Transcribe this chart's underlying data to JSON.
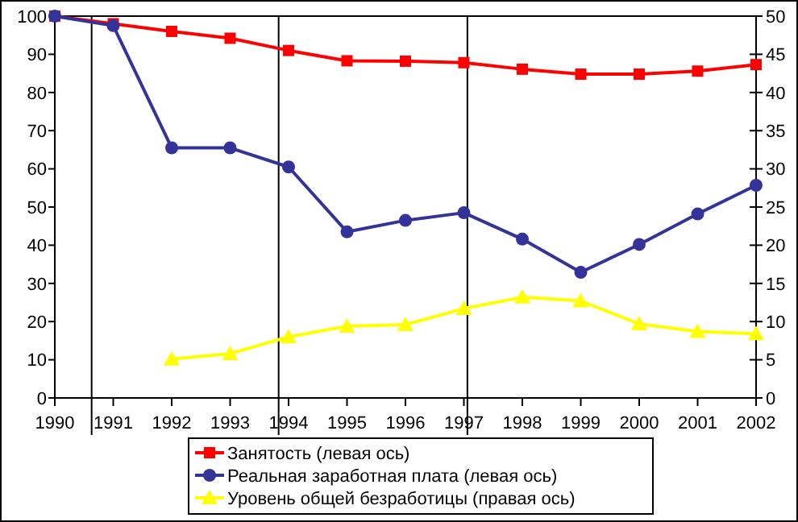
{
  "chart_data": {
    "type": "line",
    "x": [
      1990,
      1991,
      1992,
      1993,
      1994,
      1995,
      1996,
      1997,
      1998,
      1999,
      2000,
      2001,
      2002
    ],
    "xlim": [
      1990,
      2002
    ],
    "xticks": [
      1990,
      1991,
      1992,
      1993,
      1994,
      1995,
      1996,
      1997,
      1998,
      1999,
      2000,
      2001,
      2002
    ],
    "ylim": [
      0,
      100
    ],
    "yticks": [
      0,
      10,
      20,
      30,
      40,
      50,
      60,
      70,
      80,
      90,
      100
    ],
    "y2lim": [
      0,
      50
    ],
    "y2ticks": [
      0,
      5,
      10,
      15,
      20,
      25,
      30,
      35,
      40,
      45,
      50
    ],
    "series": [
      {
        "name": "Занятость (левая ось)",
        "color": "#ff0000",
        "marker": "square",
        "values": [
          100,
          98,
          96,
          94.2,
          91,
          88.3,
          88.2,
          87.8,
          86.1,
          84.8,
          84.8,
          85.6,
          87.3
        ]
      },
      {
        "name": "Реальная заработная плата (левая ось)",
        "color": "#333399",
        "marker": "circle",
        "values": [
          100,
          97.5,
          65.5,
          65.5,
          60.5,
          43.5,
          46.5,
          48.5,
          41.6,
          32.9,
          40.2,
          48.2,
          55.7
        ]
      },
      {
        "name": "Уровень общей безработицы (правая ось)",
        "color": "#ffff00",
        "marker": "triangle",
        "axis": "y2",
        "values": [
          null,
          null,
          5.1,
          5.8,
          8.0,
          9.4,
          9.6,
          11.7,
          13.2,
          12.7,
          9.7,
          8.7,
          8.4
        ]
      }
    ],
    "ref_lines": [
      {
        "axis": "x",
        "value": 1990.63,
        "color": "#000000"
      },
      {
        "axis": "x",
        "value": 1993.83,
        "color": "#000000"
      },
      {
        "axis": "x",
        "value": 1997.06,
        "color": "#000000"
      }
    ],
    "grid": false,
    "legend": "bottom",
    "line_style": "solid"
  }
}
